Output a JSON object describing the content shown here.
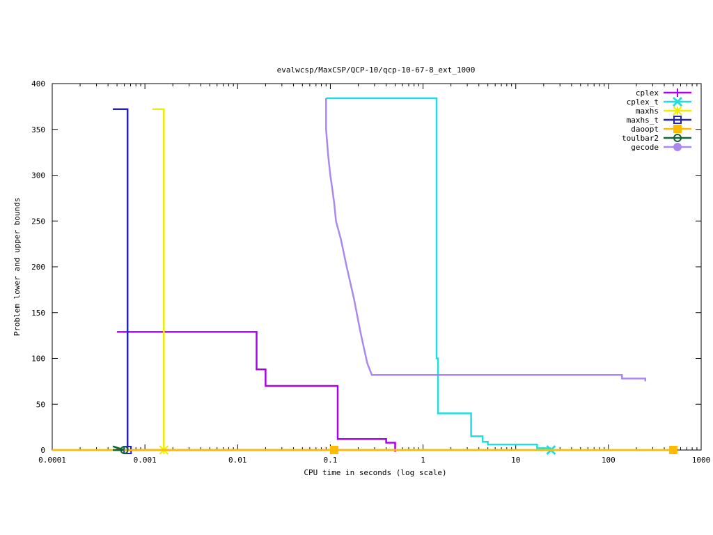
{
  "chart_data": {
    "type": "line",
    "title": "evalwcsp/MaxCSP/QCP-10/qcp-10-67-8_ext_1000",
    "xlabel": "CPU time in seconds (log scale)",
    "ylabel": "Problem lower and upper bounds",
    "xscale": "log",
    "xlim": [
      0.0001,
      1000
    ],
    "ylim": [
      0,
      400
    ],
    "xticks": [
      {
        "v": 0.0001,
        "label": "0.0001"
      },
      {
        "v": 0.001,
        "label": "0.001"
      },
      {
        "v": 0.01,
        "label": "0.01"
      },
      {
        "v": 0.1,
        "label": "0.1"
      },
      {
        "v": 1,
        "label": "1"
      },
      {
        "v": 10,
        "label": "10"
      },
      {
        "v": 100,
        "label": "100"
      },
      {
        "v": 1000,
        "label": "1000"
      }
    ],
    "yticks": [
      {
        "v": 0,
        "label": "0"
      },
      {
        "v": 50,
        "label": "50"
      },
      {
        "v": 100,
        "label": "100"
      },
      {
        "v": 150,
        "label": "150"
      },
      {
        "v": 200,
        "label": "200"
      },
      {
        "v": 250,
        "label": "250"
      },
      {
        "v": 300,
        "label": "300"
      },
      {
        "v": 350,
        "label": "350"
      },
      {
        "v": 400,
        "label": "400"
      }
    ],
    "grid": false,
    "legend_position": "top-right",
    "series": [
      {
        "name": "cplex",
        "color": "#aa00ee",
        "marker": "plus",
        "upper": [
          [
            0.0005,
            129
          ],
          [
            0.016,
            129
          ],
          [
            0.016,
            88
          ],
          [
            0.02,
            88
          ],
          [
            0.02,
            70
          ],
          [
            0.12,
            70
          ],
          [
            0.12,
            12
          ],
          [
            0.4,
            12
          ],
          [
            0.4,
            8
          ],
          [
            0.5,
            8
          ],
          [
            0.5,
            -2
          ]
        ],
        "lower": [
          [
            0.0005,
            0
          ],
          [
            0.5,
            0
          ]
        ],
        "markers": []
      },
      {
        "name": "cplex_t",
        "color": "#22dddd",
        "marker": "x",
        "upper": [
          [
            0.09,
            384
          ],
          [
            1.4,
            384
          ],
          [
            1.4,
            100
          ],
          [
            1.45,
            100
          ],
          [
            1.45,
            40
          ],
          [
            3.3,
            40
          ],
          [
            3.3,
            15
          ],
          [
            4.4,
            15
          ],
          [
            4.4,
            9
          ],
          [
            5,
            9
          ],
          [
            5,
            6
          ],
          [
            17,
            6
          ],
          [
            17,
            2
          ],
          [
            24,
            2
          ]
        ],
        "lower": [
          [
            0.09,
            0
          ],
          [
            24,
            0
          ]
        ],
        "markers": [
          [
            24,
            0
          ]
        ]
      },
      {
        "name": "maxhs",
        "color": "#eeee00",
        "marker": "star",
        "upper": [
          [
            0.0012,
            372
          ],
          [
            0.0016,
            372
          ],
          [
            0.0016,
            0
          ]
        ],
        "lower": [
          [
            0.0012,
            0
          ],
          [
            0.0016,
            0
          ]
        ],
        "markers": [
          [
            0.0016,
            0
          ]
        ]
      },
      {
        "name": "maxhs_t",
        "color": "#2222bb",
        "marker": "box",
        "upper": [
          [
            0.00045,
            372
          ],
          [
            0.00065,
            372
          ],
          [
            0.00065,
            0
          ]
        ],
        "lower": [
          [
            0.00045,
            0
          ],
          [
            0.00065,
            0
          ]
        ],
        "markers": [
          [
            0.00065,
            0
          ]
        ]
      },
      {
        "name": "daoopt",
        "color": "#ffbb00",
        "marker": "filled-box",
        "upper": [
          [
            0.0001,
            0
          ],
          [
            500,
            0
          ]
        ],
        "lower": [
          [
            0.0001,
            0
          ],
          [
            500,
            0
          ]
        ],
        "markers": [
          [
            0.11,
            0
          ],
          [
            500,
            0
          ]
        ]
      },
      {
        "name": "toulbar2",
        "color": "#116633",
        "marker": "circle",
        "upper": [
          [
            0.00045,
            4
          ],
          [
            0.0006,
            0
          ]
        ],
        "lower": [
          [
            0.00045,
            0
          ],
          [
            0.0006,
            0
          ]
        ],
        "markers": [
          [
            0.0006,
            0
          ]
        ]
      },
      {
        "name": "gecode",
        "color": "#aa88ee",
        "marker": "filled-circle",
        "upper": [
          [
            0.09,
            384
          ],
          [
            0.09,
            350
          ],
          [
            0.095,
            320
          ],
          [
            0.1,
            300
          ],
          [
            0.105,
            285
          ],
          [
            0.11,
            270
          ],
          [
            0.115,
            250
          ],
          [
            0.13,
            230
          ],
          [
            0.15,
            200
          ],
          [
            0.18,
            165
          ],
          [
            0.21,
            130
          ],
          [
            0.25,
            95
          ],
          [
            0.28,
            82
          ],
          [
            140,
            82
          ],
          [
            140,
            78
          ],
          [
            250,
            78
          ],
          [
            250,
            75
          ]
        ],
        "lower": [],
        "markers": []
      }
    ]
  }
}
